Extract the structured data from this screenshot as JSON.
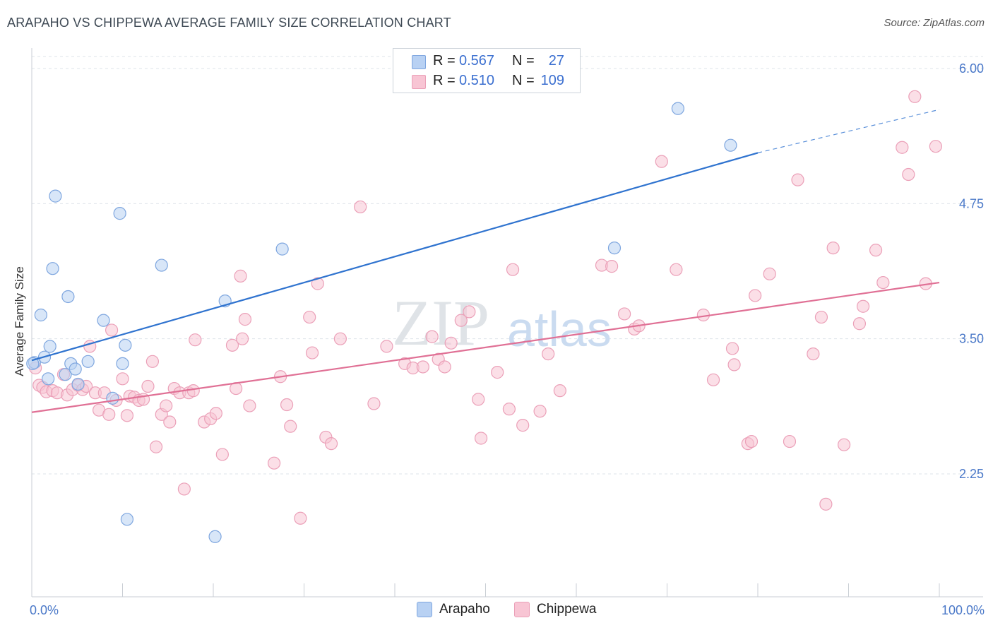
{
  "title": "ARAPAHO VS CHIPPEWA AVERAGE FAMILY SIZE CORRELATION CHART",
  "source": "Source: ZipAtlas.com",
  "watermark": {
    "zip": "ZIP",
    "atlas": "atlas"
  },
  "legend": {
    "rows": [
      {
        "r_label": "R =",
        "r_value": "0.567",
        "n_label": "N =",
        "n_value": "27"
      },
      {
        "r_label": "R =",
        "r_value": "0.510",
        "n_label": "N =",
        "n_value": "109"
      }
    ]
  },
  "bottom_legend": {
    "arapaho": "Arapaho",
    "chippewa": "Chippewa"
  },
  "colors": {
    "arapaho_fill": "#b8d1f3",
    "arapaho_stroke": "#7ea6df",
    "arapaho_line": "#2f73cf",
    "chippewa_fill": "#f8c5d4",
    "chippewa_stroke": "#eba0b8",
    "chippewa_line": "#e07095",
    "tick_label": "#4a78c8",
    "grid": "#dde3ea"
  },
  "chart_data": {
    "type": "scatter",
    "title": "ARAPAHO VS CHIPPEWA AVERAGE FAMILY SIZE CORRELATION CHART",
    "xlabel": "",
    "ylabel": "Average Family Size",
    "xlim": [
      0,
      100
    ],
    "ylim": [
      1.0,
      6.1
    ],
    "y_ticks": [
      2.25,
      3.5,
      4.75,
      6.0
    ],
    "y_tick_labels": [
      "2.25",
      "3.50",
      "4.75",
      "6.00"
    ],
    "x_tick_labels": [
      "0.0%",
      "100.0%"
    ],
    "series": [
      {
        "name": "Arapaho",
        "R": 0.567,
        "N": 27,
        "trend": {
          "x": [
            0,
            80
          ],
          "y": [
            3.3,
            5.22
          ],
          "dashed_to": [
            100,
            5.62
          ]
        },
        "points": [
          [
            0.3,
            3.28
          ],
          [
            1.0,
            3.72
          ],
          [
            1.4,
            3.33
          ],
          [
            1.8,
            3.13
          ],
          [
            2.0,
            3.43
          ],
          [
            2.3,
            4.15
          ],
          [
            2.6,
            4.82
          ],
          [
            3.7,
            3.17
          ],
          [
            4.0,
            3.89
          ],
          [
            4.3,
            3.27
          ],
          [
            4.8,
            3.22
          ],
          [
            5.1,
            3.08
          ],
          [
            6.2,
            3.29
          ],
          [
            7.9,
            3.67
          ],
          [
            8.9,
            2.95
          ],
          [
            10.0,
            3.27
          ],
          [
            10.3,
            3.44
          ],
          [
            10.5,
            1.83
          ],
          [
            9.7,
            4.66
          ],
          [
            14.3,
            4.18
          ],
          [
            20.2,
            1.67
          ],
          [
            21.3,
            3.85
          ],
          [
            27.6,
            4.33
          ],
          [
            64.2,
            4.34
          ],
          [
            71.2,
            5.63
          ],
          [
            77.0,
            5.29
          ],
          [
            0.1,
            3.27
          ]
        ]
      },
      {
        "name": "Chippewa",
        "R": 0.51,
        "N": 109,
        "trend": {
          "x": [
            0,
            100
          ],
          "y": [
            2.82,
            4.02
          ]
        },
        "points": [
          [
            0.4,
            3.23
          ],
          [
            0.8,
            3.07
          ],
          [
            1.2,
            3.05
          ],
          [
            1.6,
            3.01
          ],
          [
            2.3,
            3.02
          ],
          [
            2.8,
            3.0
          ],
          [
            3.5,
            3.17
          ],
          [
            3.9,
            2.98
          ],
          [
            4.5,
            3.03
          ],
          [
            5.1,
            3.07
          ],
          [
            5.6,
            3.03
          ],
          [
            6.0,
            3.06
          ],
          [
            6.4,
            3.43
          ],
          [
            7.0,
            3.0
          ],
          [
            7.4,
            2.84
          ],
          [
            8.0,
            3.0
          ],
          [
            8.5,
            2.8
          ],
          [
            8.8,
            3.58
          ],
          [
            9.3,
            2.93
          ],
          [
            10.0,
            3.13
          ],
          [
            10.5,
            2.79
          ],
          [
            10.8,
            2.97
          ],
          [
            11.3,
            2.96
          ],
          [
            11.8,
            2.93
          ],
          [
            12.3,
            2.94
          ],
          [
            12.8,
            3.06
          ],
          [
            13.3,
            3.29
          ],
          [
            13.7,
            2.5
          ],
          [
            14.3,
            2.8
          ],
          [
            14.8,
            2.88
          ],
          [
            15.2,
            2.73
          ],
          [
            15.7,
            3.04
          ],
          [
            16.3,
            3.0
          ],
          [
            16.8,
            2.11
          ],
          [
            17.3,
            3.0
          ],
          [
            17.8,
            3.02
          ],
          [
            18.0,
            3.49
          ],
          [
            19.0,
            2.73
          ],
          [
            19.7,
            2.76
          ],
          [
            20.3,
            2.81
          ],
          [
            21.0,
            2.43
          ],
          [
            22.1,
            3.44
          ],
          [
            22.5,
            3.04
          ],
          [
            23.2,
            3.5
          ],
          [
            23.5,
            3.68
          ],
          [
            24.0,
            2.88
          ],
          [
            23.0,
            4.08
          ],
          [
            26.7,
            2.35
          ],
          [
            27.4,
            3.15
          ],
          [
            28.1,
            2.89
          ],
          [
            28.5,
            2.69
          ],
          [
            29.6,
            1.84
          ],
          [
            30.6,
            3.7
          ],
          [
            30.9,
            3.37
          ],
          [
            31.5,
            4.01
          ],
          [
            32.4,
            2.59
          ],
          [
            33.0,
            2.53
          ],
          [
            34.0,
            3.5
          ],
          [
            36.2,
            4.72
          ],
          [
            37.7,
            2.9
          ],
          [
            39.1,
            3.43
          ],
          [
            41.1,
            3.27
          ],
          [
            42.0,
            3.23
          ],
          [
            43.1,
            3.24
          ],
          [
            44.1,
            3.52
          ],
          [
            44.8,
            3.31
          ],
          [
            45.5,
            3.24
          ],
          [
            46.2,
            3.46
          ],
          [
            47.3,
            3.67
          ],
          [
            48.2,
            3.75
          ],
          [
            49.2,
            2.94
          ],
          [
            49.5,
            2.58
          ],
          [
            51.3,
            3.19
          ],
          [
            52.6,
            2.85
          ],
          [
            53.0,
            4.14
          ],
          [
            54.1,
            2.7
          ],
          [
            56.0,
            2.83
          ],
          [
            56.9,
            3.36
          ],
          [
            58.2,
            3.02
          ],
          [
            62.8,
            4.18
          ],
          [
            63.9,
            4.17
          ],
          [
            65.3,
            3.73
          ],
          [
            66.4,
            3.59
          ],
          [
            66.9,
            3.62
          ],
          [
            69.4,
            5.14
          ],
          [
            71.0,
            4.14
          ],
          [
            74.0,
            3.72
          ],
          [
            75.1,
            3.12
          ],
          [
            77.2,
            3.41
          ],
          [
            77.4,
            3.26
          ],
          [
            78.9,
            2.53
          ],
          [
            79.3,
            2.55
          ],
          [
            79.7,
            3.9
          ],
          [
            81.3,
            4.1
          ],
          [
            83.5,
            2.55
          ],
          [
            84.4,
            4.97
          ],
          [
            86.1,
            3.36
          ],
          [
            87.0,
            3.7
          ],
          [
            87.5,
            1.97
          ],
          [
            88.3,
            4.34
          ],
          [
            89.5,
            2.52
          ],
          [
            91.2,
            3.64
          ],
          [
            91.6,
            3.8
          ],
          [
            93.0,
            4.32
          ],
          [
            93.8,
            4.02
          ],
          [
            95.9,
            5.27
          ],
          [
            96.6,
            5.02
          ],
          [
            97.3,
            5.74
          ],
          [
            98.5,
            4.01
          ],
          [
            99.6,
            5.28
          ]
        ]
      }
    ]
  }
}
